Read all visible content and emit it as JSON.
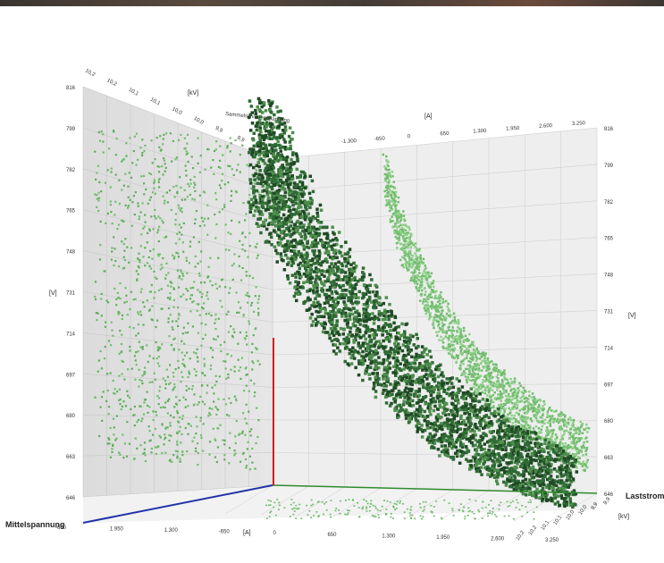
{
  "chart_data": {
    "type": "scatter",
    "dimension": "3d",
    "colors": {
      "main_cloud": "#2f6b35",
      "main_cloud_light": "#4f8f4c",
      "projection": "#72bd6e",
      "vertical_marker": "#d42020",
      "axis_x": "#2233aa",
      "axis_y": "#2e8b2e"
    },
    "axes": {
      "voltage_label": "[V]",
      "voltage_ticks": [
        "816",
        "799",
        "782",
        "765",
        "748",
        "731",
        "714",
        "697",
        "680",
        "663",
        "646"
      ],
      "voltage_range": [
        646,
        816
      ],
      "right_voltage_ticks": [
        "816",
        "799",
        "782",
        "765",
        "748",
        "731",
        "714",
        "697",
        "680",
        "663",
        "646"
      ],
      "current_label": "[A]",
      "current_ticks": [
        "-600",
        "1.950",
        "1.300",
        "-650",
        "0",
        "650",
        "1.300",
        "1.950",
        "2.600",
        "3.250"
      ],
      "top_current_label": "[A]",
      "top_current_ticks": [
        "-1.300",
        "-650",
        "0",
        "650",
        "1.300",
        "1.950",
        "2.600",
        "3.250"
      ],
      "kv_label": "[kV]",
      "kv_left_ticks": [
        "10,2",
        "10,2",
        "10,1",
        "10,1",
        "10,0",
        "10,0",
        "9,9",
        "9,9"
      ],
      "kv_right_ticks": [
        "10,2",
        "10,2",
        "10,1",
        "10,1",
        "10,0",
        "10,0",
        "9,9",
        "9,9"
      ],
      "label_mittelspannung": "Mittelspannung",
      "label_laststrom": "Laststrom",
      "label_sammelschienenspannung": "Sammelschienenspannung"
    },
    "series": [
      {
        "kind": "3d-cloud",
        "curve_current_A": [
          -500,
          -200,
          0,
          300,
          650,
          1000,
          1300,
          1700,
          1950,
          2300,
          2600
        ],
        "curve_voltage_V": [
          816,
          790,
          765,
          745,
          725,
          705,
          690,
          680,
          672,
          665,
          660
        ]
      },
      {
        "kind": "projection-wall-current",
        "curve_current_A": [
          -300,
          0,
          650,
          1300,
          1950,
          2600,
          3250
        ],
        "curve_voltage_V": [
          790,
          760,
          725,
          700,
          685,
          672,
          663
        ]
      },
      {
        "kind": "projection-wall-kv",
        "voltage_range_V": [
          663,
          800
        ]
      }
    ]
  }
}
